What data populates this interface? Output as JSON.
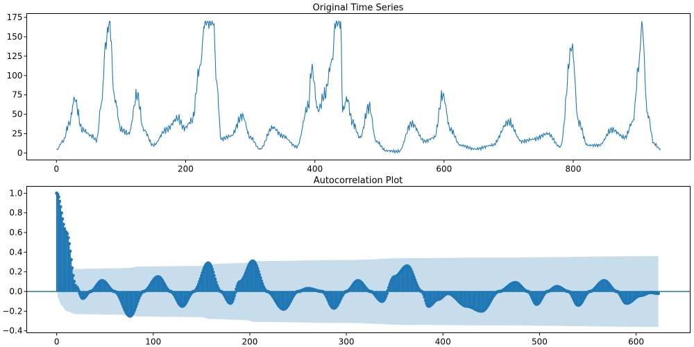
{
  "chart_data": [
    {
      "type": "line",
      "title": "Original Time Series",
      "xlabel": "",
      "ylabel": "",
      "xlim": [
        -46,
        981
      ],
      "ylim": [
        -9,
        180
      ],
      "xticks": [
        0,
        200,
        400,
        600,
        800
      ],
      "yticks": [
        0,
        25,
        50,
        75,
        100,
        125,
        150,
        175
      ],
      "grid": false,
      "legend": "none",
      "color": "#1f77b4",
      "n_points": 936,
      "peaks": [
        {
          "x": 0,
          "y": 4
        },
        {
          "x": 10,
          "y": 15
        },
        {
          "x": 20,
          "y": 38
        },
        {
          "x": 28,
          "y": 70
        },
        {
          "x": 40,
          "y": 30
        },
        {
          "x": 55,
          "y": 22
        },
        {
          "x": 62,
          "y": 16
        },
        {
          "x": 70,
          "y": 65
        },
        {
          "x": 76,
          "y": 140
        },
        {
          "x": 82,
          "y": 170
        },
        {
          "x": 90,
          "y": 70
        },
        {
          "x": 100,
          "y": 30
        },
        {
          "x": 112,
          "y": 25
        },
        {
          "x": 125,
          "y": 75
        },
        {
          "x": 135,
          "y": 30
        },
        {
          "x": 150,
          "y": 10
        },
        {
          "x": 170,
          "y": 30
        },
        {
          "x": 188,
          "y": 45
        },
        {
          "x": 198,
          "y": 32
        },
        {
          "x": 210,
          "y": 42
        },
        {
          "x": 222,
          "y": 110
        },
        {
          "x": 230,
          "y": 170
        },
        {
          "x": 243,
          "y": 170
        },
        {
          "x": 248,
          "y": 90
        },
        {
          "x": 255,
          "y": 18
        },
        {
          "x": 270,
          "y": 22
        },
        {
          "x": 288,
          "y": 48
        },
        {
          "x": 300,
          "y": 20
        },
        {
          "x": 315,
          "y": 5
        },
        {
          "x": 335,
          "y": 33
        },
        {
          "x": 350,
          "y": 22
        },
        {
          "x": 372,
          "y": 8
        },
        {
          "x": 390,
          "y": 60
        },
        {
          "x": 395,
          "y": 110
        },
        {
          "x": 405,
          "y": 55
        },
        {
          "x": 415,
          "y": 75
        },
        {
          "x": 427,
          "y": 120
        },
        {
          "x": 432,
          "y": 170
        },
        {
          "x": 440,
          "y": 170
        },
        {
          "x": 443,
          "y": 55
        },
        {
          "x": 450,
          "y": 70
        },
        {
          "x": 458,
          "y": 40
        },
        {
          "x": 470,
          "y": 20
        },
        {
          "x": 484,
          "y": 60
        },
        {
          "x": 495,
          "y": 15
        },
        {
          "x": 510,
          "y": 3
        },
        {
          "x": 530,
          "y": 2
        },
        {
          "x": 550,
          "y": 38
        },
        {
          "x": 570,
          "y": 15
        },
        {
          "x": 585,
          "y": 20
        },
        {
          "x": 598,
          "y": 75
        },
        {
          "x": 610,
          "y": 30
        },
        {
          "x": 625,
          "y": 10
        },
        {
          "x": 648,
          "y": 5
        },
        {
          "x": 675,
          "y": 10
        },
        {
          "x": 700,
          "y": 40
        },
        {
          "x": 720,
          "y": 15
        },
        {
          "x": 740,
          "y": 18
        },
        {
          "x": 760,
          "y": 25
        },
        {
          "x": 780,
          "y": 8
        },
        {
          "x": 798,
          "y": 137
        },
        {
          "x": 808,
          "y": 40
        },
        {
          "x": 822,
          "y": 10
        },
        {
          "x": 840,
          "y": 10
        },
        {
          "x": 860,
          "y": 30
        },
        {
          "x": 880,
          "y": 20
        },
        {
          "x": 892,
          "y": 40
        },
        {
          "x": 902,
          "y": 115
        },
        {
          "x": 906,
          "y": 170
        },
        {
          "x": 915,
          "y": 50
        },
        {
          "x": 925,
          "y": 12
        },
        {
          "x": 935,
          "y": 5
        }
      ]
    },
    {
      "type": "line",
      "title": "Autocorrelation Plot",
      "xlabel": "",
      "ylabel": "",
      "xlim": [
        -31,
        656
      ],
      "ylim": [
        -0.42,
        1.07
      ],
      "xticks": [
        0,
        100,
        200,
        300,
        400,
        500,
        600
      ],
      "yticks": [
        -0.4,
        -0.2,
        0.0,
        0.2,
        0.4,
        0.6,
        0.8,
        1.0
      ],
      "grid": false,
      "legend": "none",
      "color": "#1f77b4",
      "confint_color": "#1f77b4",
      "n_lags": 624,
      "zero_line": 0.0,
      "acf_knots": [
        {
          "x": 0,
          "y": 1.0
        },
        {
          "x": 10,
          "y": 0.6
        },
        {
          "x": 20,
          "y": 0.05
        },
        {
          "x": 27,
          "y": -0.07
        },
        {
          "x": 35,
          "y": 0.0
        },
        {
          "x": 47,
          "y": 0.11
        },
        {
          "x": 60,
          "y": 0.0
        },
        {
          "x": 76,
          "y": -0.25
        },
        {
          "x": 90,
          "y": 0.0
        },
        {
          "x": 105,
          "y": 0.15
        },
        {
          "x": 118,
          "y": 0.0
        },
        {
          "x": 130,
          "y": -0.15
        },
        {
          "x": 142,
          "y": 0.0
        },
        {
          "x": 157,
          "y": 0.29
        },
        {
          "x": 170,
          "y": 0.0
        },
        {
          "x": 180,
          "y": -0.12
        },
        {
          "x": 190,
          "y": 0.1
        },
        {
          "x": 203,
          "y": 0.31
        },
        {
          "x": 218,
          "y": 0.0
        },
        {
          "x": 235,
          "y": -0.18
        },
        {
          "x": 250,
          "y": 0.0
        },
        {
          "x": 260,
          "y": 0.03
        },
        {
          "x": 275,
          "y": 0.0
        },
        {
          "x": 287,
          "y": -0.17
        },
        {
          "x": 300,
          "y": 0.0
        },
        {
          "x": 312,
          "y": 0.11
        },
        {
          "x": 325,
          "y": 0.0
        },
        {
          "x": 337,
          "y": -0.1
        },
        {
          "x": 350,
          "y": 0.15
        },
        {
          "x": 363,
          "y": 0.26
        },
        {
          "x": 378,
          "y": 0.0
        },
        {
          "x": 385,
          "y": -0.15
        },
        {
          "x": 395,
          "y": -0.08
        },
        {
          "x": 405,
          "y": -0.02
        },
        {
          "x": 425,
          "y": -0.15
        },
        {
          "x": 440,
          "y": -0.2
        },
        {
          "x": 458,
          "y": 0.0
        },
        {
          "x": 475,
          "y": 0.09
        },
        {
          "x": 488,
          "y": 0.0
        },
        {
          "x": 497,
          "y": -0.13
        },
        {
          "x": 508,
          "y": 0.0
        },
        {
          "x": 518,
          "y": 0.05
        },
        {
          "x": 530,
          "y": 0.0
        },
        {
          "x": 540,
          "y": -0.14
        },
        {
          "x": 552,
          "y": 0.0
        },
        {
          "x": 567,
          "y": 0.11
        },
        {
          "x": 580,
          "y": 0.0
        },
        {
          "x": 590,
          "y": -0.12
        },
        {
          "x": 605,
          "y": -0.04
        },
        {
          "x": 615,
          "y": -0.01
        },
        {
          "x": 623,
          "y": -0.02
        }
      ],
      "confint_knots": [
        {
          "x": 1,
          "y": 0.06
        },
        {
          "x": 5,
          "y": 0.14
        },
        {
          "x": 10,
          "y": 0.2
        },
        {
          "x": 20,
          "y": 0.23
        },
        {
          "x": 60,
          "y": 0.235
        },
        {
          "x": 75,
          "y": 0.24
        },
        {
          "x": 85,
          "y": 0.255
        },
        {
          "x": 150,
          "y": 0.26
        },
        {
          "x": 158,
          "y": 0.28
        },
        {
          "x": 195,
          "y": 0.29
        },
        {
          "x": 205,
          "y": 0.31
        },
        {
          "x": 300,
          "y": 0.32
        },
        {
          "x": 365,
          "y": 0.34
        },
        {
          "x": 450,
          "y": 0.345
        },
        {
          "x": 623,
          "y": 0.36
        }
      ]
    }
  ]
}
